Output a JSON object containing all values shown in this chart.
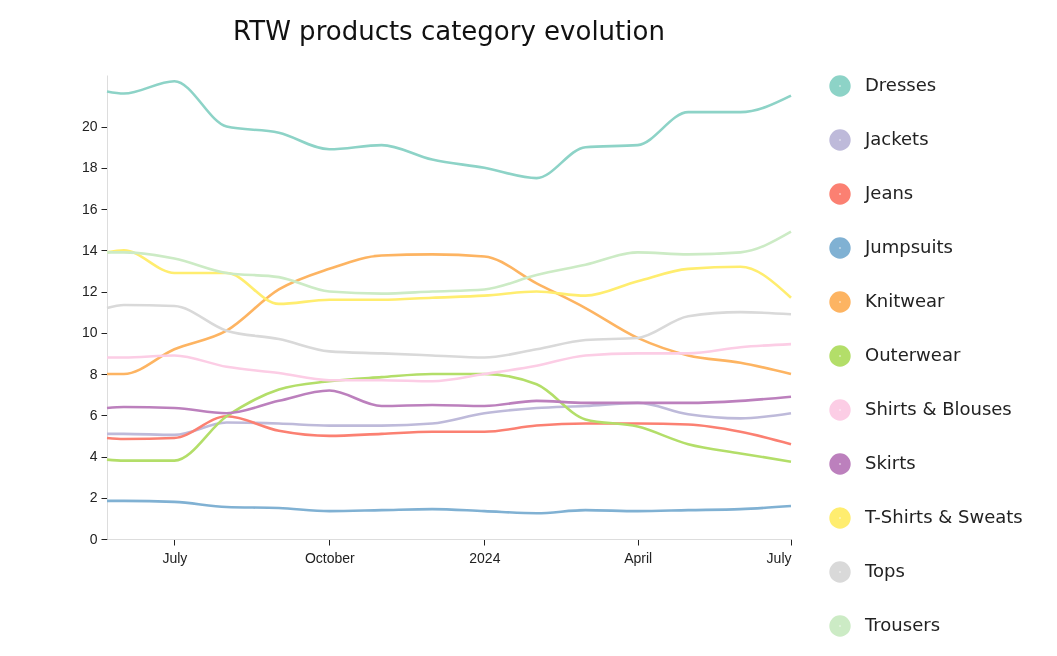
{
  "chart_data": {
    "type": "line",
    "title": "RTW products category evolution",
    "x": [
      "2023-05-22",
      "2023-06-01",
      "2023-07-01",
      "2023-08-01",
      "2023-09-01",
      "2023-10-01",
      "2023-11-01",
      "2023-12-01",
      "2024-01-01",
      "2024-02-01",
      "2024-03-01",
      "2024-04-01",
      "2024-05-01",
      "2024-06-01",
      "2024-07-01"
    ],
    "xlim": [
      "2023-05-22",
      "2024-07-01"
    ],
    "xticks": [
      {
        "value": "2023-07-01",
        "label": "July"
      },
      {
        "value": "2023-10-01",
        "label": "October"
      },
      {
        "value": "2024-01-01",
        "label": "2024"
      },
      {
        "value": "2024-04-01",
        "label": "April"
      },
      {
        "value": "2024-07-01",
        "label": "July"
      }
    ],
    "ylim": [
      0,
      22.5
    ],
    "yticks": [
      0,
      2,
      4,
      6,
      8,
      10,
      12,
      14,
      16,
      18,
      20
    ],
    "legend": "right",
    "grid": false,
    "marker": "none",
    "line_style": "solid",
    "series": [
      {
        "name": "Dresses",
        "color": "#8dd3c7",
        "values": [
          21.7,
          21.6,
          22.2,
          20.0,
          19.7,
          18.9,
          19.1,
          18.4,
          18.0,
          17.5,
          19.0,
          19.1,
          20.7,
          20.7,
          21.5
        ]
      },
      {
        "name": "Jackets",
        "color": "#bebada",
        "values": [
          5.1,
          5.1,
          5.05,
          5.65,
          5.6,
          5.5,
          5.5,
          5.6,
          6.1,
          6.35,
          6.45,
          6.6,
          6.05,
          5.85,
          6.1
        ]
      },
      {
        "name": "Jeans",
        "color": "#fb8072",
        "values": [
          4.9,
          4.85,
          4.9,
          5.95,
          5.25,
          5.0,
          5.1,
          5.2,
          5.2,
          5.5,
          5.6,
          5.6,
          5.55,
          5.2,
          4.6
        ]
      },
      {
        "name": "Jumpsuits",
        "color": "#80b1d3",
        "values": [
          1.85,
          1.85,
          1.8,
          1.55,
          1.5,
          1.35,
          1.4,
          1.45,
          1.35,
          1.25,
          1.4,
          1.35,
          1.4,
          1.45,
          1.6
        ]
      },
      {
        "name": "Knitwear",
        "color": "#fdb462",
        "values": [
          8.0,
          8.0,
          9.2,
          10.1,
          12.1,
          13.1,
          13.75,
          13.8,
          13.7,
          12.4,
          11.2,
          9.75,
          8.9,
          8.55,
          8.0
        ]
      },
      {
        "name": "Outerwear",
        "color": "#b3de69",
        "values": [
          3.85,
          3.8,
          3.8,
          5.95,
          7.25,
          7.65,
          7.85,
          8.0,
          8.0,
          7.5,
          5.8,
          5.45,
          4.6,
          4.15,
          3.75
        ]
      },
      {
        "name": "Shirts & Blouses",
        "color": "#fccde5",
        "values": [
          8.8,
          8.8,
          8.9,
          8.35,
          8.05,
          7.7,
          7.7,
          7.65,
          8.0,
          8.4,
          8.9,
          9.0,
          9.0,
          9.3,
          9.45
        ]
      },
      {
        "name": "Skirts",
        "color": "#bc80bd",
        "values": [
          6.35,
          6.4,
          6.35,
          6.1,
          6.7,
          7.2,
          6.45,
          6.5,
          6.45,
          6.7,
          6.6,
          6.6,
          6.6,
          6.7,
          6.9
        ]
      },
      {
        "name": "T-Shirts & Sweats",
        "color": "#ffed6f",
        "values": [
          13.9,
          14.0,
          12.9,
          12.9,
          11.4,
          11.6,
          11.6,
          11.7,
          11.8,
          12.0,
          11.8,
          12.5,
          13.1,
          13.2,
          11.7
        ]
      },
      {
        "name": "Tops",
        "color": "#d9d9d9",
        "values": [
          11.2,
          11.35,
          11.3,
          10.1,
          9.7,
          9.1,
          9.0,
          8.9,
          8.8,
          9.2,
          9.65,
          9.75,
          10.8,
          11.0,
          10.9
        ]
      },
      {
        "name": "Trousers",
        "color": "#ccebc5",
        "values": [
          13.9,
          13.9,
          13.6,
          12.9,
          12.7,
          12.0,
          11.9,
          12.0,
          12.1,
          12.8,
          13.3,
          13.9,
          13.8,
          13.9,
          14.9
        ]
      }
    ]
  }
}
